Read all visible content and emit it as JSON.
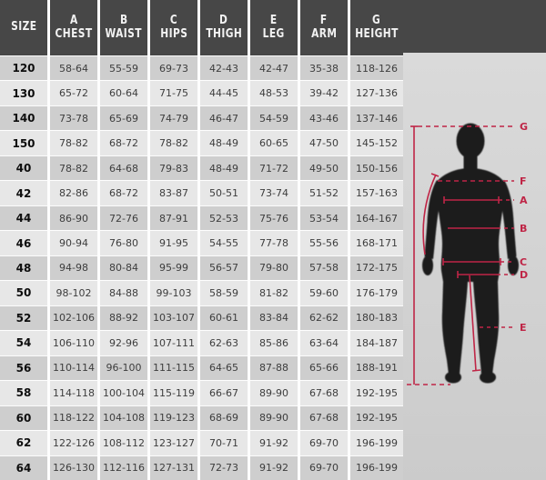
{
  "chart_data": {
    "type": "table",
    "columns": [
      {
        "letter": "",
        "label": "SIZE"
      },
      {
        "letter": "A",
        "label": "CHEST"
      },
      {
        "letter": "B",
        "label": "WAIST"
      },
      {
        "letter": "C",
        "label": "HIPS"
      },
      {
        "letter": "D",
        "label": "THIGH"
      },
      {
        "letter": "E",
        "label": "LEG"
      },
      {
        "letter": "F",
        "label": "ARM"
      },
      {
        "letter": "G",
        "label": "HEIGHT"
      }
    ],
    "rows": [
      {
        "size": "120",
        "values": [
          "58-64",
          "55-59",
          "69-73",
          "42-43",
          "42-47",
          "35-38",
          "118-126"
        ]
      },
      {
        "size": "130",
        "values": [
          "65-72",
          "60-64",
          "71-75",
          "44-45",
          "48-53",
          "39-42",
          "127-136"
        ]
      },
      {
        "size": "140",
        "values": [
          "73-78",
          "65-69",
          "74-79",
          "46-47",
          "54-59",
          "43-46",
          "137-146"
        ]
      },
      {
        "size": "150",
        "values": [
          "78-82",
          "68-72",
          "78-82",
          "48-49",
          "60-65",
          "47-50",
          "145-152"
        ]
      },
      {
        "size": "40",
        "values": [
          "78-82",
          "64-68",
          "79-83",
          "48-49",
          "71-72",
          "49-50",
          "150-156"
        ]
      },
      {
        "size": "42",
        "values": [
          "82-86",
          "68-72",
          "83-87",
          "50-51",
          "73-74",
          "51-52",
          "157-163"
        ]
      },
      {
        "size": "44",
        "values": [
          "86-90",
          "72-76",
          "87-91",
          "52-53",
          "75-76",
          "53-54",
          "164-167"
        ]
      },
      {
        "size": "46",
        "values": [
          "90-94",
          "76-80",
          "91-95",
          "54-55",
          "77-78",
          "55-56",
          "168-171"
        ]
      },
      {
        "size": "48",
        "values": [
          "94-98",
          "80-84",
          "95-99",
          "56-57",
          "79-80",
          "57-58",
          "172-175"
        ]
      },
      {
        "size": "50",
        "values": [
          "98-102",
          "84-88",
          "99-103",
          "58-59",
          "81-82",
          "59-60",
          "176-179"
        ]
      },
      {
        "size": "52",
        "values": [
          "102-106",
          "88-92",
          "103-107",
          "60-61",
          "83-84",
          "62-62",
          "180-183"
        ]
      },
      {
        "size": "54",
        "values": [
          "106-110",
          "92-96",
          "107-111",
          "62-63",
          "85-86",
          "63-64",
          "184-187"
        ]
      },
      {
        "size": "56",
        "values": [
          "110-114",
          "96-100",
          "111-115",
          "64-65",
          "87-88",
          "65-66",
          "188-191"
        ]
      },
      {
        "size": "58",
        "values": [
          "114-118",
          "100-104",
          "115-119",
          "66-67",
          "89-90",
          "67-68",
          "192-195"
        ]
      },
      {
        "size": "60",
        "values": [
          "118-122",
          "104-108",
          "119-123",
          "68-69",
          "89-90",
          "67-68",
          "192-195"
        ]
      },
      {
        "size": "62",
        "values": [
          "122-126",
          "108-112",
          "123-127",
          "70-71",
          "91-92",
          "69-70",
          "196-199"
        ]
      },
      {
        "size": "64",
        "values": [
          "126-130",
          "112-116",
          "127-131",
          "72-73",
          "91-92",
          "69-70",
          "196-199"
        ]
      }
    ]
  },
  "diagram": {
    "labels": {
      "g": "G",
      "f": "F",
      "a": "A",
      "b": "B",
      "c": "C",
      "d": "D",
      "e": "E"
    }
  },
  "colors": {
    "header_bg": "#474747",
    "header_text": "#f2f2f2",
    "row_odd": "#cecece",
    "row_even": "#e7e7e7",
    "accent_red": "#bf2546",
    "silhouette": "#1b1b1b"
  }
}
